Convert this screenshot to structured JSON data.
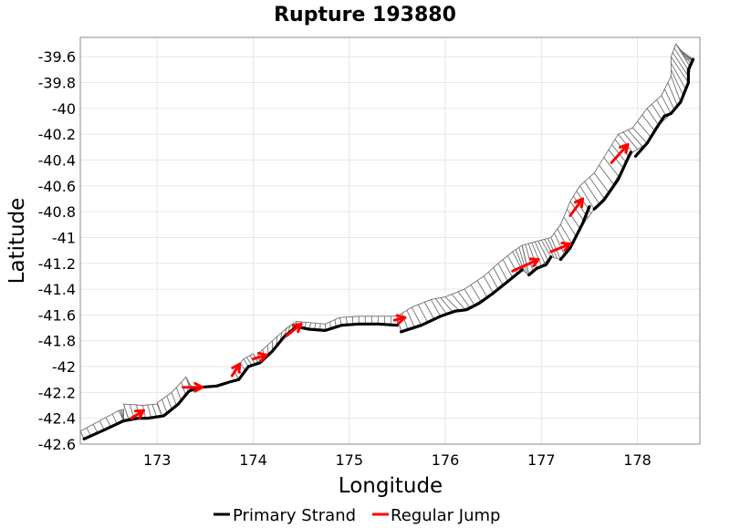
{
  "chart_data": {
    "type": "line",
    "title": "Rupture 193880",
    "xlabel": "Longitude",
    "ylabel": "Latitude",
    "xlim": [
      172.2,
      178.65
    ],
    "ylim": [
      -42.6,
      -39.45
    ],
    "xticks": [
      173,
      174,
      175,
      176,
      177,
      178
    ],
    "yticks": [
      -39.6,
      -39.8,
      -40,
      -40.2,
      -40.4,
      -40.6,
      -40.8,
      -41,
      -41.2,
      -41.4,
      -41.6,
      -41.8,
      -42,
      -42.2,
      -42.4,
      -42.6
    ],
    "grid": true,
    "legend": {
      "position": "bottom",
      "entries": [
        {
          "label": "Primary Strand",
          "color": "#000000"
        },
        {
          "label": "Regular Jump",
          "color": "#ff0000"
        }
      ]
    },
    "series": [
      {
        "name": "Primary Strand",
        "color": "#000000",
        "segments": [
          [
            [
              172.24,
              -42.56
            ],
            [
              172.45,
              -42.49
            ],
            [
              172.65,
              -42.42
            ],
            [
              172.8,
              -42.4
            ],
            [
              172.9,
              -42.4
            ],
            [
              173.07,
              -42.38
            ],
            [
              173.22,
              -42.29
            ],
            [
              173.33,
              -42.19
            ],
            [
              173.45,
              -42.16
            ],
            [
              173.62,
              -42.15
            ],
            [
              173.75,
              -42.12
            ],
            [
              173.85,
              -42.1
            ]
          ],
          [
            [
              173.85,
              -42.1
            ],
            [
              173.95,
              -42.0
            ],
            [
              174.07,
              -41.97
            ],
            [
              174.2,
              -41.88
            ],
            [
              174.32,
              -41.77
            ],
            [
              174.45,
              -41.69
            ],
            [
              174.58,
              -41.71
            ],
            [
              174.75,
              -41.72
            ],
            [
              174.92,
              -41.68
            ],
            [
              175.1,
              -41.67
            ],
            [
              175.3,
              -41.67
            ],
            [
              175.5,
              -41.68
            ]
          ],
          [
            [
              175.54,
              -41.73
            ],
            [
              175.75,
              -41.68
            ],
            [
              175.95,
              -41.61
            ],
            [
              176.1,
              -41.57
            ],
            [
              176.22,
              -41.56
            ],
            [
              176.35,
              -41.51
            ],
            [
              176.5,
              -41.43
            ],
            [
              176.65,
              -41.34
            ],
            [
              176.8,
              -41.25
            ]
          ],
          [
            [
              176.87,
              -41.29
            ],
            [
              176.95,
              -41.24
            ],
            [
              177.05,
              -41.21
            ],
            [
              177.1,
              -41.15
            ]
          ],
          [
            [
              177.2,
              -41.17
            ],
            [
              177.3,
              -41.08
            ],
            [
              177.43,
              -40.89
            ],
            [
              177.5,
              -40.76
            ]
          ],
          [
            [
              177.55,
              -40.78
            ],
            [
              177.65,
              -40.71
            ],
            [
              177.8,
              -40.55
            ],
            [
              177.93,
              -40.34
            ]
          ],
          [
            [
              177.98,
              -40.37
            ],
            [
              178.1,
              -40.27
            ],
            [
              178.2,
              -40.15
            ],
            [
              178.28,
              -40.06
            ],
            [
              178.35,
              -40.04
            ],
            [
              178.45,
              -39.95
            ],
            [
              178.53,
              -39.8
            ],
            [
              178.53,
              -39.7
            ],
            [
              178.58,
              -39.62
            ]
          ]
        ]
      },
      {
        "name": "Regular Jump",
        "color": "#ff0000",
        "segments": [
          [
            [
              172.73,
              -42.4
            ],
            [
              172.86,
              -42.34
            ]
          ],
          [
            [
              173.27,
              -42.16
            ],
            [
              173.47,
              -42.16
            ]
          ],
          [
            [
              173.78,
              -42.07
            ],
            [
              173.86,
              -41.98
            ]
          ],
          [
            [
              174.0,
              -41.94
            ],
            [
              174.14,
              -41.91
            ]
          ],
          [
            [
              174.35,
              -41.76
            ],
            [
              174.5,
              -41.67
            ]
          ],
          [
            [
              175.47,
              -41.64
            ],
            [
              175.58,
              -41.62
            ]
          ],
          [
            [
              176.7,
              -41.26
            ],
            [
              176.97,
              -41.17
            ]
          ],
          [
            [
              177.1,
              -41.11
            ],
            [
              177.3,
              -41.05
            ]
          ],
          [
            [
              177.3,
              -40.83
            ],
            [
              177.43,
              -40.7
            ]
          ],
          [
            [
              177.73,
              -40.42
            ],
            [
              177.9,
              -40.28
            ]
          ]
        ]
      }
    ],
    "fault_surfaces": [
      {
        "top": [
          [
            172.2,
            -42.5
          ],
          [
            172.4,
            -42.42
          ],
          [
            172.6,
            -42.34
          ],
          [
            172.65,
            -42.33
          ]
        ],
        "base": [
          [
            172.24,
            -42.56
          ],
          [
            172.45,
            -42.49
          ],
          [
            172.65,
            -42.42
          ],
          [
            172.65,
            -42.42
          ]
        ]
      },
      {
        "top": [
          [
            172.65,
            -42.29
          ],
          [
            172.85,
            -42.3
          ],
          [
            173.0,
            -42.29
          ]
        ],
        "base": [
          [
            172.7,
            -42.4
          ],
          [
            172.88,
            -42.4
          ],
          [
            173.05,
            -42.38
          ]
        ]
      },
      {
        "top": [
          [
            173.0,
            -42.28
          ],
          [
            173.15,
            -42.2
          ],
          [
            173.3,
            -42.08
          ],
          [
            173.35,
            -42.15
          ]
        ],
        "base": [
          [
            173.05,
            -42.38
          ],
          [
            173.2,
            -42.3
          ],
          [
            173.35,
            -42.19
          ],
          [
            173.4,
            -42.18
          ]
        ]
      },
      {
        "top": [
          [
            173.8,
            -42.03
          ],
          [
            173.9,
            -41.94
          ],
          [
            174.0,
            -41.9
          ]
        ],
        "base": [
          [
            173.85,
            -42.1
          ],
          [
            173.95,
            -42.0
          ],
          [
            174.05,
            -41.97
          ]
        ]
      },
      {
        "top": [
          [
            174.05,
            -41.9
          ],
          [
            174.2,
            -41.8
          ],
          [
            174.35,
            -41.7
          ],
          [
            174.45,
            -41.65
          ]
        ],
        "base": [
          [
            174.07,
            -41.97
          ],
          [
            174.2,
            -41.88
          ],
          [
            174.32,
            -41.77
          ],
          [
            174.45,
            -41.69
          ]
        ]
      },
      {
        "top": [
          [
            174.45,
            -41.65
          ],
          [
            174.6,
            -41.66
          ],
          [
            174.75,
            -41.67
          ],
          [
            174.9,
            -41.62
          ],
          [
            175.1,
            -41.61
          ],
          [
            175.3,
            -41.61
          ],
          [
            175.5,
            -41.61
          ]
        ],
        "base": [
          [
            174.45,
            -41.69
          ],
          [
            174.58,
            -41.71
          ],
          [
            174.75,
            -41.72
          ],
          [
            174.92,
            -41.68
          ],
          [
            175.1,
            -41.67
          ],
          [
            175.3,
            -41.67
          ],
          [
            175.5,
            -41.68
          ]
        ]
      },
      {
        "top": [
          [
            175.5,
            -41.61
          ],
          [
            175.65,
            -41.54
          ],
          [
            175.85,
            -41.48
          ],
          [
            176.0,
            -41.46
          ],
          [
            176.2,
            -41.4
          ],
          [
            176.4,
            -41.3
          ],
          [
            176.55,
            -41.2
          ],
          [
            176.7,
            -41.11
          ],
          [
            176.8,
            -41.06
          ]
        ],
        "base": [
          [
            175.54,
            -41.73
          ],
          [
            175.75,
            -41.68
          ],
          [
            175.95,
            -41.61
          ],
          [
            176.15,
            -41.57
          ],
          [
            176.3,
            -41.52
          ],
          [
            176.5,
            -41.43
          ],
          [
            176.65,
            -41.34
          ],
          [
            176.8,
            -41.25
          ],
          [
            176.87,
            -41.29
          ]
        ]
      },
      {
        "top": [
          [
            176.8,
            -41.06
          ],
          [
            176.9,
            -41.04
          ],
          [
            177.0,
            -41.02
          ],
          [
            177.1,
            -41.0
          ],
          [
            177.2,
            -40.9
          ],
          [
            177.3,
            -40.72
          ],
          [
            177.4,
            -40.6
          ],
          [
            177.55,
            -40.5
          ],
          [
            177.7,
            -40.32
          ],
          [
            177.8,
            -40.2
          ],
          [
            177.95,
            -40.15
          ],
          [
            178.1,
            -40.0
          ],
          [
            178.25,
            -39.9
          ],
          [
            178.35,
            -39.75
          ],
          [
            178.35,
            -39.6
          ],
          [
            178.4,
            -39.5
          ],
          [
            178.45,
            -39.55
          ],
          [
            178.5,
            -39.62
          ]
        ],
        "base": [
          [
            176.87,
            -41.29
          ],
          [
            177.0,
            -41.22
          ],
          [
            177.1,
            -41.15
          ],
          [
            177.2,
            -41.17
          ],
          [
            177.32,
            -41.05
          ],
          [
            177.45,
            -40.88
          ],
          [
            177.55,
            -40.78
          ],
          [
            177.7,
            -40.65
          ],
          [
            177.85,
            -40.46
          ],
          [
            177.95,
            -40.34
          ],
          [
            178.1,
            -40.27
          ],
          [
            178.22,
            -40.13
          ],
          [
            178.35,
            -40.04
          ],
          [
            178.45,
            -39.95
          ],
          [
            178.53,
            -39.8
          ],
          [
            178.55,
            -39.68
          ],
          [
            178.58,
            -39.62
          ],
          [
            178.58,
            -39.62
          ]
        ]
      }
    ]
  }
}
